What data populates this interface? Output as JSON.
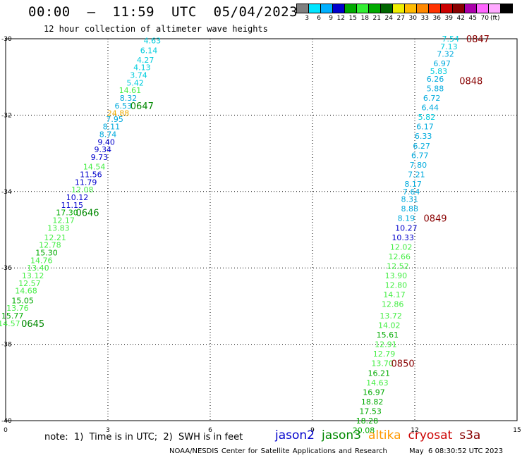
{
  "header": {
    "title": "00:00  –  11:59  UTC  05/04/2023",
    "subtitle": "12 hour collection of altimeter wave heights"
  },
  "colorbar": {
    "colors": [
      "#7f7f7f",
      "#00e5ff",
      "#00b0ff",
      "#0000cc",
      "#00aa00",
      "#33ee33",
      "#00aa00",
      "#006600",
      "#eeee00",
      "#ffbb00",
      "#ff8800",
      "#ff3300",
      "#cc0000",
      "#880000",
      "#aa00aa",
      "#ff66ff",
      "#ffaaff",
      "#000000"
    ],
    "tick_labels": [
      "3",
      "6",
      "9",
      "12",
      "15",
      "18",
      "21",
      "24",
      "27",
      "30",
      "33",
      "36",
      "39",
      "42",
      "45",
      "70"
    ],
    "unit": "(ft)"
  },
  "note": "note:  1)  Time is in UTC;  2)  SWH is in feet",
  "legend": [
    {
      "name": "jason2",
      "color": "#0000cc"
    },
    {
      "name": "jason3",
      "color": "#008800"
    },
    {
      "name": "altika",
      "color": "#ff9900"
    },
    {
      "name": "cryosat",
      "color": "#cc0000"
    },
    {
      "name": "s3a",
      "color": "#880000"
    }
  ],
  "footer": {
    "credit": "NOAA/NESDIS Center for Satellite Applications and Research",
    "timestamp": "May  6 08:30:52 UTC 2023"
  },
  "chart_data": {
    "type": "scatter",
    "title": "00:00 – 11:59 UTC 05/04/2023",
    "xlim": [
      0,
      15
    ],
    "ylim": [
      -40,
      -30
    ],
    "x_ticks": [
      "0",
      "3",
      "6",
      "9",
      "12",
      "15"
    ],
    "y_ticks": [
      "-30",
      "-32",
      "-34",
      "-36",
      "-38",
      "-40"
    ],
    "grid": true,
    "series": [
      {
        "name": "track-left",
        "points": [
          {
            "x": 4.3,
            "y": -30.05,
            "v": "4.63",
            "color": "#00ccdd"
          },
          {
            "x": 4.2,
            "y": -30.3,
            "v": "6.14",
            "color": "#00ccdd"
          },
          {
            "x": 4.1,
            "y": -30.55,
            "v": "4.27",
            "color": "#00ccdd"
          },
          {
            "x": 4.0,
            "y": -30.75,
            "v": "4.13",
            "color": "#00ccdd"
          },
          {
            "x": 3.9,
            "y": -30.95,
            "v": "3.74",
            "color": "#00ccdd"
          },
          {
            "x": 3.8,
            "y": -31.15,
            "v": "5.42",
            "color": "#00ccdd"
          },
          {
            "x": 3.65,
            "y": -31.35,
            "v": "14.61",
            "color": "#44ee44"
          },
          {
            "x": 3.6,
            "y": -31.55,
            "v": "8.32",
            "color": "#00aadd"
          },
          {
            "x": 3.45,
            "y": -31.75,
            "v": "6.53",
            "color": "#00aadd"
          },
          {
            "x": 3.3,
            "y": -31.95,
            "v": "24.88",
            "color": "#eeaa00"
          },
          {
            "x": 3.2,
            "y": -32.1,
            "v": "7.95",
            "color": "#00aadd"
          },
          {
            "x": 3.1,
            "y": -32.3,
            "v": "8.11",
            "color": "#00aadd"
          },
          {
            "x": 3.0,
            "y": -32.5,
            "v": "8.74",
            "color": "#00aadd"
          },
          {
            "x": 2.95,
            "y": -32.7,
            "v": "9.40",
            "color": "#0000cc"
          },
          {
            "x": 2.85,
            "y": -32.9,
            "v": "9.34",
            "color": "#0000cc"
          },
          {
            "x": 2.75,
            "y": -33.1,
            "v": "9.73",
            "color": "#0000cc"
          },
          {
            "x": 2.6,
            "y": -33.35,
            "v": "14.54",
            "color": "#44ee44"
          },
          {
            "x": 2.5,
            "y": -33.55,
            "v": "11.56",
            "color": "#0000cc"
          },
          {
            "x": 2.35,
            "y": -33.75,
            "v": "11.79",
            "color": "#0000cc"
          },
          {
            "x": 2.25,
            "y": -33.95,
            "v": "12.08",
            "color": "#44ee44"
          },
          {
            "x": 2.1,
            "y": -34.15,
            "v": "10.12",
            "color": "#0000cc"
          },
          {
            "x": 1.95,
            "y": -34.35,
            "v": "11.15",
            "color": "#0000cc"
          },
          {
            "x": 1.8,
            "y": -34.55,
            "v": "17.30",
            "color": "#00aa00"
          },
          {
            "x": 1.7,
            "y": -34.75,
            "v": "12.17",
            "color": "#44ee44"
          },
          {
            "x": 1.55,
            "y": -34.95,
            "v": "13.83",
            "color": "#44ee44"
          },
          {
            "x": 1.45,
            "y": -35.2,
            "v": "12.21",
            "color": "#44ee44"
          },
          {
            "x": 1.3,
            "y": -35.4,
            "v": "12.78",
            "color": "#44ee44"
          },
          {
            "x": 1.2,
            "y": -35.6,
            "v": "15.30",
            "color": "#00aa00"
          },
          {
            "x": 1.05,
            "y": -35.8,
            "v": "14.76",
            "color": "#44ee44"
          },
          {
            "x": 0.95,
            "y": -36.0,
            "v": "13.40",
            "color": "#44ee44"
          },
          {
            "x": 0.8,
            "y": -36.2,
            "v": "13.12",
            "color": "#44ee44"
          },
          {
            "x": 0.7,
            "y": -36.4,
            "v": "12.57",
            "color": "#44ee44"
          },
          {
            "x": 0.6,
            "y": -36.6,
            "v": "14.68",
            "color": "#44ee44"
          },
          {
            "x": 0.5,
            "y": -36.85,
            "v": "15.05",
            "color": "#00aa00"
          },
          {
            "x": 0.35,
            "y": -37.05,
            "v": "13.76",
            "color": "#44ee44"
          },
          {
            "x": 0.2,
            "y": -37.25,
            "v": "15.77",
            "color": "#00aa00"
          },
          {
            "x": 0.1,
            "y": -37.45,
            "v": "14.57",
            "color": "#44ee44"
          }
        ]
      },
      {
        "name": "track-right",
        "points": [
          {
            "x": 13.05,
            "y": -30.0,
            "v": "7.54",
            "color": "#00ccdd"
          },
          {
            "x": 13.0,
            "y": -30.2,
            "v": "7.13",
            "color": "#00ccdd"
          },
          {
            "x": 12.9,
            "y": -30.4,
            "v": "7.32",
            "color": "#00aadd"
          },
          {
            "x": 12.8,
            "y": -30.65,
            "v": "6.97",
            "color": "#00aadd"
          },
          {
            "x": 12.7,
            "y": -30.85,
            "v": "5.83",
            "color": "#00ccdd"
          },
          {
            "x": 12.6,
            "y": -31.05,
            "v": "6.26",
            "color": "#00aadd"
          },
          {
            "x": 12.6,
            "y": -31.3,
            "v": "5.88",
            "color": "#00aadd"
          },
          {
            "x": 12.5,
            "y": -31.55,
            "v": "6.72",
            "color": "#00aadd"
          },
          {
            "x": 12.45,
            "y": -31.8,
            "v": "6.44",
            "color": "#00aadd"
          },
          {
            "x": 12.35,
            "y": -32.05,
            "v": "5.82",
            "color": "#00ccdd"
          },
          {
            "x": 12.3,
            "y": -32.3,
            "v": "6.17",
            "color": "#00aadd"
          },
          {
            "x": 12.25,
            "y": -32.55,
            "v": "6.33",
            "color": "#00aadd"
          },
          {
            "x": 12.2,
            "y": -32.8,
            "v": "6.27",
            "color": "#00aadd"
          },
          {
            "x": 12.15,
            "y": -33.05,
            "v": "6.77",
            "color": "#00aadd"
          },
          {
            "x": 12.1,
            "y": -33.3,
            "v": "7.80",
            "color": "#00aadd"
          },
          {
            "x": 12.05,
            "y": -33.55,
            "v": "7.21",
            "color": "#00aadd"
          },
          {
            "x": 11.95,
            "y": -33.8,
            "v": "8.17",
            "color": "#00aadd"
          },
          {
            "x": 11.9,
            "y": -34.0,
            "v": "7.64",
            "color": "#00aadd"
          },
          {
            "x": 11.85,
            "y": -34.2,
            "v": "8.31",
            "color": "#00aadd"
          },
          {
            "x": 11.85,
            "y": -34.45,
            "v": "8.88",
            "color": "#00aadd"
          },
          {
            "x": 11.75,
            "y": -34.7,
            "v": "8.19",
            "color": "#00aadd"
          },
          {
            "x": 11.75,
            "y": -34.95,
            "v": "10.27",
            "color": "#0000cc"
          },
          {
            "x": 11.65,
            "y": -35.2,
            "v": "10.33",
            "color": "#0000cc"
          },
          {
            "x": 11.6,
            "y": -35.45,
            "v": "12.02",
            "color": "#44ee44"
          },
          {
            "x": 11.55,
            "y": -35.7,
            "v": "12.66",
            "color": "#44ee44"
          },
          {
            "x": 11.5,
            "y": -35.95,
            "v": "12.52",
            "color": "#44ee44"
          },
          {
            "x": 11.45,
            "y": -36.2,
            "v": "13.90",
            "color": "#44ee44"
          },
          {
            "x": 11.45,
            "y": -36.45,
            "v": "12.80",
            "color": "#44ee44"
          },
          {
            "x": 11.4,
            "y": -36.7,
            "v": "14.17",
            "color": "#44ee44"
          },
          {
            "x": 11.35,
            "y": -36.95,
            "v": "12.86",
            "color": "#44ee44"
          },
          {
            "x": 11.3,
            "y": -37.25,
            "v": "13.72",
            "color": "#44ee44"
          },
          {
            "x": 11.25,
            "y": -37.5,
            "v": "14.02",
            "color": "#44ee44"
          },
          {
            "x": 11.2,
            "y": -37.75,
            "v": "15.61",
            "color": "#00aa00"
          },
          {
            "x": 11.15,
            "y": -38.0,
            "v": "12.91",
            "color": "#44ee44"
          },
          {
            "x": 11.1,
            "y": -38.25,
            "v": "12.79",
            "color": "#44ee44"
          },
          {
            "x": 11.05,
            "y": -38.5,
            "v": "13.70",
            "color": "#44ee44"
          },
          {
            "x": 10.95,
            "y": -38.75,
            "v": "16.21",
            "color": "#00aa00"
          },
          {
            "x": 10.9,
            "y": -39.0,
            "v": "14.63",
            "color": "#44ee44"
          },
          {
            "x": 10.8,
            "y": -39.25,
            "v": "16.97",
            "color": "#00aa00"
          },
          {
            "x": 10.75,
            "y": -39.5,
            "v": "18.82",
            "color": "#00aa00"
          },
          {
            "x": 10.7,
            "y": -39.75,
            "v": "17.53",
            "color": "#00aa00"
          },
          {
            "x": 10.6,
            "y": -40.0,
            "v": "18.28",
            "color": "#00aa00"
          },
          {
            "x": 10.5,
            "y": -40.25,
            "v": "20.08",
            "color": "#00aa00"
          }
        ]
      }
    ],
    "time_labels": [
      {
        "text": "0647",
        "x": 4.0,
        "y": -31.75,
        "color": "#008800"
      },
      {
        "text": "0646",
        "x": 2.4,
        "y": -34.55,
        "color": "#008800"
      },
      {
        "text": "0645",
        "x": 0.8,
        "y": -37.45,
        "color": "#008800"
      },
      {
        "text": "0847",
        "x": 13.85,
        "y": -30.0,
        "color": "#880000"
      },
      {
        "text": "0848",
        "x": 13.65,
        "y": -31.1,
        "color": "#880000"
      },
      {
        "text": "0849",
        "x": 12.6,
        "y": -34.7,
        "color": "#880000"
      },
      {
        "text": "0850",
        "x": 11.65,
        "y": -38.5,
        "color": "#880000"
      }
    ]
  }
}
